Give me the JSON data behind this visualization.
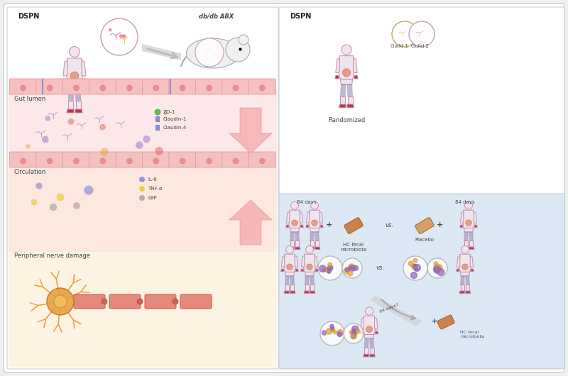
{
  "bg_color": "#f0f0f0",
  "left_panel_bg": "#ffffff",
  "right_panel_top_bg": "#ffffff",
  "right_panel_bottom_bg": "#dde8f5",
  "gut_lumen_bg": "#fce8e8",
  "circulation_bg": "#fde8e0",
  "nerve_bg": "#fdf3e3",
  "border_color": "#cccccc",
  "text_color": "#444444",
  "text_color_dark": "#222222",
  "pink_cell_color": "#f5c0c0",
  "pink_cell_border": "#e09090",
  "body_color": "#f0e4ee",
  "ext_color": "#c03050",
  "mid_color": "#9090c0",
  "edge_color": "#c090a8",
  "microbiome_purple": "#9060c0",
  "microbiome_orange": "#e0a030",
  "microbiome_red": "#e05050",
  "il6_blue": "#8080d0",
  "tnfa_yellow": "#e8c820",
  "lbp_gray": "#a0a0a0",
  "zo1_green": "#60b860",
  "claudin_blue": "#8090d0",
  "nerve_orange": "#e8a040",
  "capsule_orange": "#c87030",
  "arrow_pink": "#f5b0b0",
  "arrow_pink_border": "#e09090",
  "title_fontsize": 7,
  "label_fontsize": 6,
  "small_fontsize": 5,
  "sections": {
    "left_top_label": "DSPN",
    "left_mouse_label": "db/db ABX",
    "gut_lumen_label": "Gut lumen",
    "zo1_label": "ZO-1",
    "claudin1_label": "Claudin-1",
    "claudin4_label": "Claudin-4",
    "il6_label": "IL-6",
    "tnfa_label": "TNF-α",
    "lbp_label": "LBP",
    "circulation_label": "Circulation",
    "nerve_label": "Peripheral nerve damage",
    "right_top_label": "DSPN",
    "guild1_label": "Guild 1",
    "guild2_label": "Guild 2",
    "randomized_label": "Randomized",
    "hc_fecal_label": "HC fecal\nmicrobiota",
    "placebo_label": "Placebo",
    "vs_label": "vs.",
    "days84_left": "84 days",
    "days84_right": "84 days",
    "days84_cross": "84 days?"
  }
}
